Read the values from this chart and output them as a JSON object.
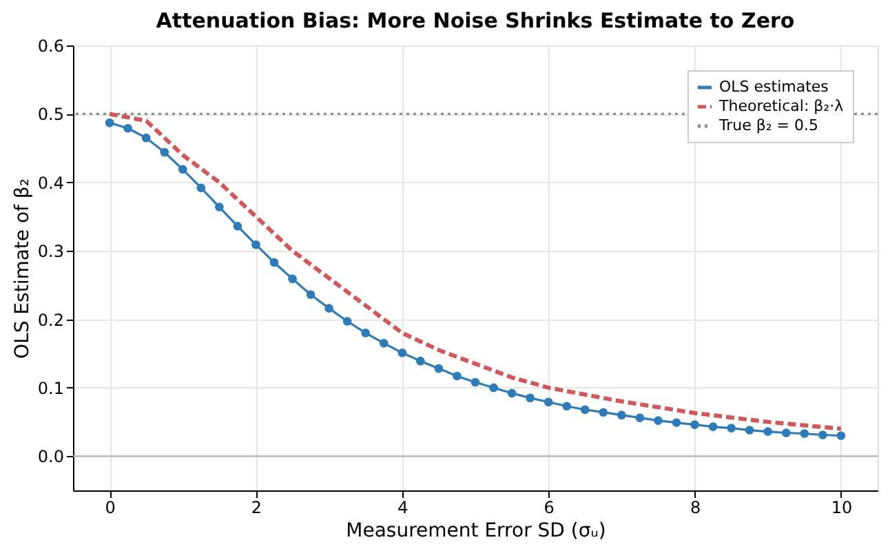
{
  "chart_data": {
    "type": "line",
    "title": "Attenuation Bias: More Noise Shrinks Estimate to Zero",
    "xlabel": "Measurement Error SD (σᵤ)",
    "ylabel": "OLS Estimate of β₂",
    "series": [
      {
        "name": "OLS estimates",
        "color": "#2f7bb8",
        "marker": "circle",
        "line_style": "solid",
        "x": [
          0,
          0.25,
          0.5,
          0.75,
          1,
          1.25,
          1.5,
          1.75,
          2,
          2.25,
          2.5,
          2.75,
          3,
          3.25,
          3.5,
          3.75,
          4,
          4.25,
          4.5,
          4.75,
          5,
          5.25,
          5.5,
          5.75,
          6,
          6.25,
          6.5,
          6.75,
          7,
          7.25,
          7.5,
          7.75,
          8,
          8.25,
          8.5,
          8.75,
          9,
          9.25,
          9.5,
          9.75,
          10
        ],
        "values": [
          0.487,
          0.479,
          0.465,
          0.444,
          0.419,
          0.392,
          0.364,
          0.336,
          0.309,
          0.283,
          0.259,
          0.236,
          0.216,
          0.197,
          0.18,
          0.165,
          0.151,
          0.139,
          0.128,
          0.117,
          0.108,
          0.1,
          0.092,
          0.085,
          0.079,
          0.073,
          0.068,
          0.064,
          0.06,
          0.056,
          0.052,
          0.049,
          0.046,
          0.043,
          0.041,
          0.038,
          0.036,
          0.034,
          0.033,
          0.031,
          0.03
        ]
      },
      {
        "name": "Theoretical: β₂·λ",
        "color": "#d1585a",
        "marker": "none",
        "line_style": "dashed",
        "x": [
          0,
          0.5,
          1,
          1.5,
          2,
          2.5,
          3,
          3.5,
          4,
          4.5,
          5,
          5.5,
          6,
          7,
          8,
          9,
          10
        ],
        "values": [
          0.5,
          0.49,
          0.44,
          0.4,
          0.35,
          0.3,
          0.26,
          0.22,
          0.18,
          0.155,
          0.135,
          0.115,
          0.1,
          0.08,
          0.063,
          0.05,
          0.04
        ]
      }
    ],
    "ref_lines": [
      {
        "axis": "y",
        "value": 0.5,
        "label": "True β₂ = 0.5",
        "color": "#8c8c8c",
        "line_style": "dotted"
      },
      {
        "axis": "y",
        "value": 0,
        "color": "#b0b0b0",
        "line_style": "solid"
      }
    ],
    "xlim": [
      -0.5,
      10.5
    ],
    "xticks": [
      0,
      2,
      4,
      6,
      8,
      10
    ],
    "ylim": [
      -0.05,
      0.6
    ],
    "yticks": [
      {
        "value": 0,
        "label": "0.0"
      },
      {
        "value": 0.1,
        "label": "0.1"
      },
      {
        "value": 0.2,
        "label": "0.2"
      },
      {
        "value": 0.3,
        "label": "0.3"
      },
      {
        "value": 0.4,
        "label": "0.4"
      },
      {
        "value": 0.5,
        "label": "0.5"
      },
      {
        "value": 0.6,
        "label": "0.6"
      }
    ],
    "grid": true,
    "legend": "top right"
  }
}
